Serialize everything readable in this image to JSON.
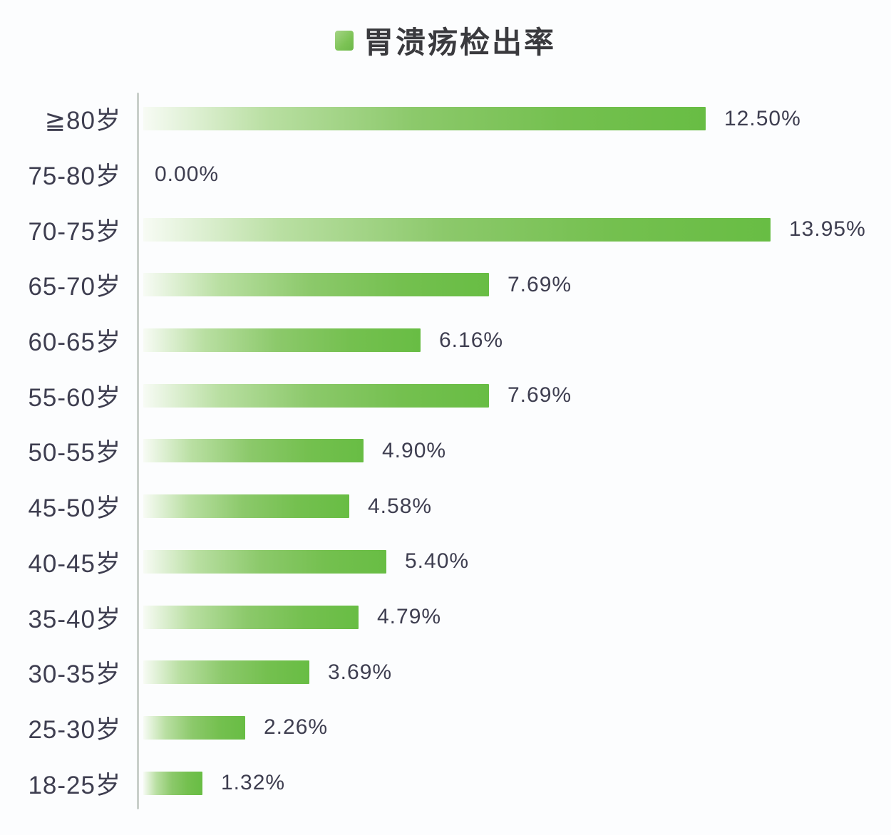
{
  "title": "胃溃疡检出率",
  "chart_data": {
    "type": "bar",
    "orientation": "horizontal",
    "title": "胃溃疡检出率",
    "legend": {
      "position": "top",
      "marker_color": "#7cc355",
      "label": "胃溃疡检出率"
    },
    "categories": [
      "≧80岁",
      "75-80岁",
      "70-75岁",
      "65-70岁",
      "60-65岁",
      "55-60岁",
      "50-55岁",
      "45-50岁",
      "40-45岁",
      "35-40岁",
      "30-35岁",
      "25-30岁",
      "18-25岁"
    ],
    "values": [
      12.5,
      0.0,
      13.95,
      7.69,
      6.16,
      7.69,
      4.9,
      4.58,
      5.4,
      4.79,
      3.69,
      2.26,
      1.32
    ],
    "value_labels": [
      "12.50%",
      "0.00%",
      "13.95%",
      "7.69%",
      "6.16%",
      "7.69%",
      "4.90%",
      "4.58%",
      "5.40%",
      "4.79%",
      "3.69%",
      "2.26%",
      "1.32%"
    ],
    "xlabel": "",
    "ylabel": "",
    "xlim": [
      0,
      16.6
    ],
    "grid": false,
    "bar_color_start": "#f7fbf4",
    "bar_color_end": "#68bd44",
    "axis_line_color": "#c9cfca",
    "text_color": "#3e3e50",
    "background_color": "#fcfdfe"
  }
}
